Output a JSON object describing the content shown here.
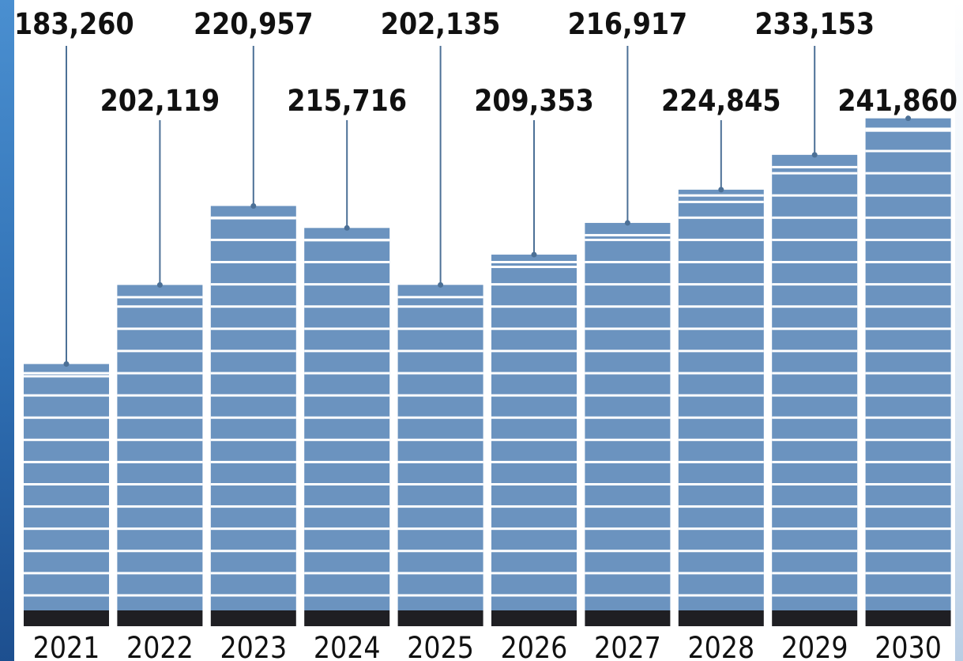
{
  "chart_data": {
    "type": "bar",
    "categories": [
      "2021",
      "2022",
      "2023",
      "2024",
      "2025",
      "2026",
      "2027",
      "2028",
      "2029",
      "2030"
    ],
    "values": [
      183260,
      202119,
      220957,
      215716,
      202135,
      209353,
      216917,
      224845,
      233153,
      241860
    ],
    "value_labels": [
      "183,260",
      "202,119",
      "220,957",
      "215,716",
      "202,135",
      "209,353",
      "216,917",
      "224,845",
      "233,153",
      "241,860"
    ],
    "title": "",
    "xlabel": "",
    "ylabel": "",
    "grid": false,
    "legend": "none",
    "colors": {
      "bar": "#6b93bf",
      "bar_base": "#1f1f23",
      "stripe": "#ffffff",
      "leader_line": "#4c7096",
      "text": "#111111"
    }
  }
}
